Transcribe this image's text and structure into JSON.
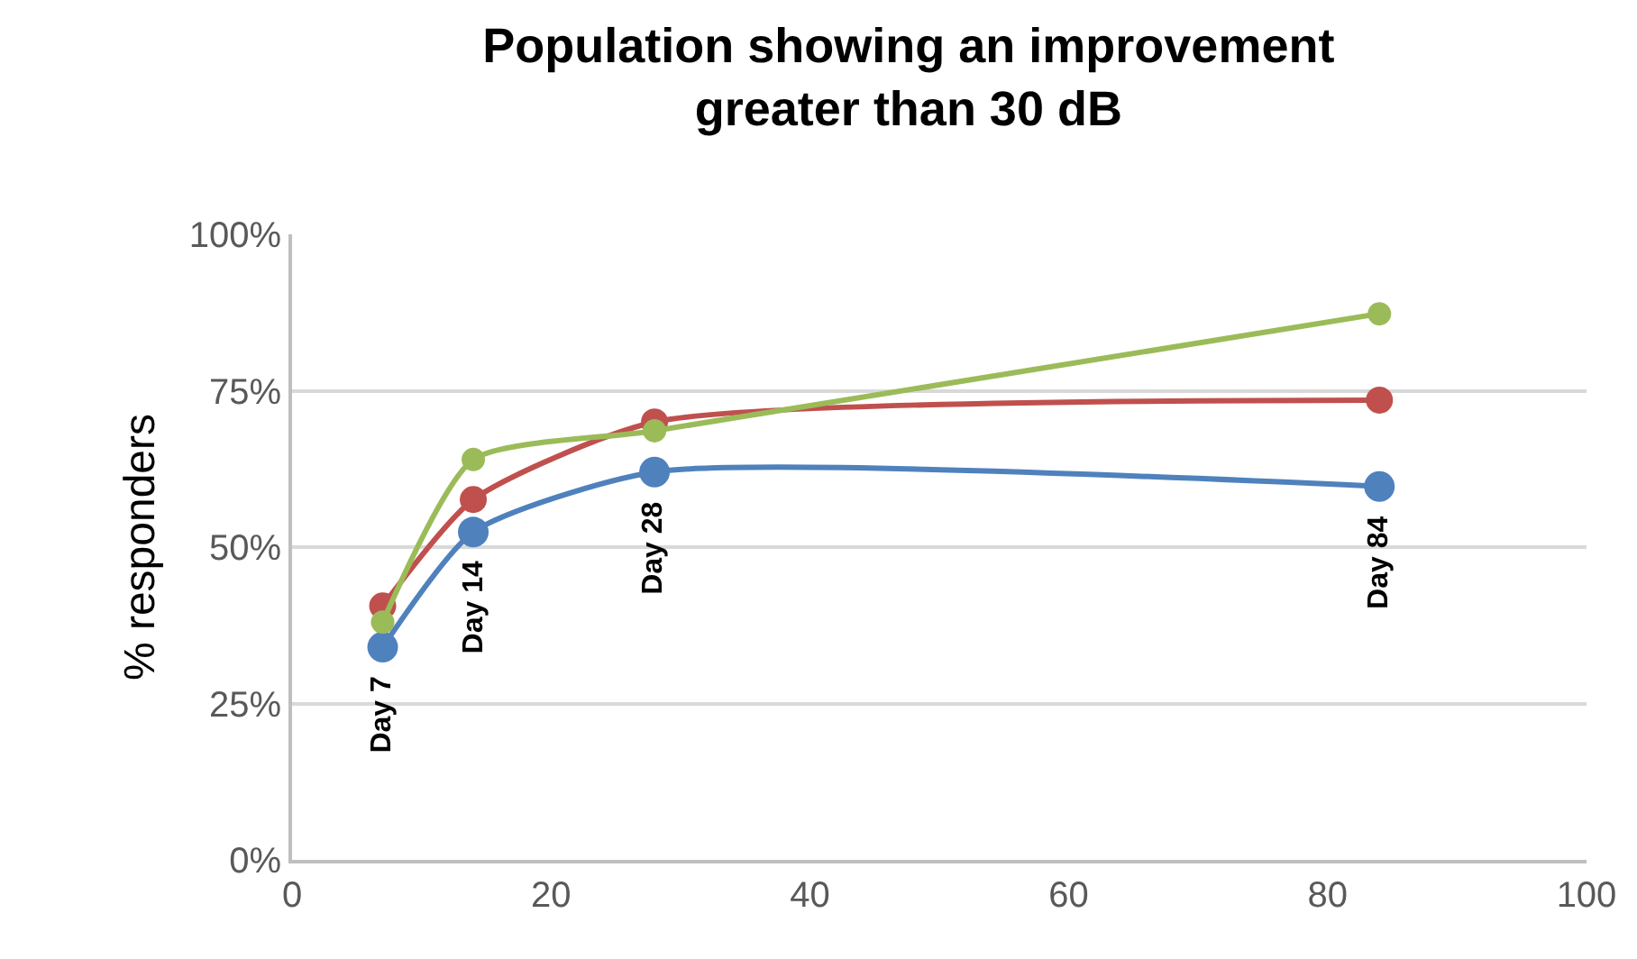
{
  "chart_data": {
    "type": "line",
    "title": "Population showing an improvement\ngreater than 30 dB",
    "ylabel": "% responders",
    "x": [
      7,
      14,
      28,
      84
    ],
    "series": [
      {
        "color": "#4f81bd",
        "values": [
          34,
          52.4,
          62,
          59.7
        ]
      },
      {
        "color": "#c0504d",
        "values": [
          40.6,
          57.6,
          70,
          73.5
        ]
      },
      {
        "color": "#9bbb59",
        "values": [
          38,
          64,
          68.6,
          87.3
        ]
      }
    ],
    "xlim": [
      0,
      100
    ],
    "xticks": [
      0,
      20,
      40,
      60,
      80,
      100
    ],
    "ylim": [
      0,
      100
    ],
    "yticks": [
      {
        "value": 0,
        "label": "0%"
      },
      {
        "value": 25,
        "label": "25%"
      },
      {
        "value": 50,
        "label": "50%"
      },
      {
        "value": 75,
        "label": "75%"
      },
      {
        "value": 100,
        "label": "100%"
      }
    ],
    "grid": "y",
    "marker": "circle",
    "line_style": "solid",
    "annotations": [
      "Day 7",
      "Day 14",
      "Day 28",
      "Day 84"
    ]
  }
}
